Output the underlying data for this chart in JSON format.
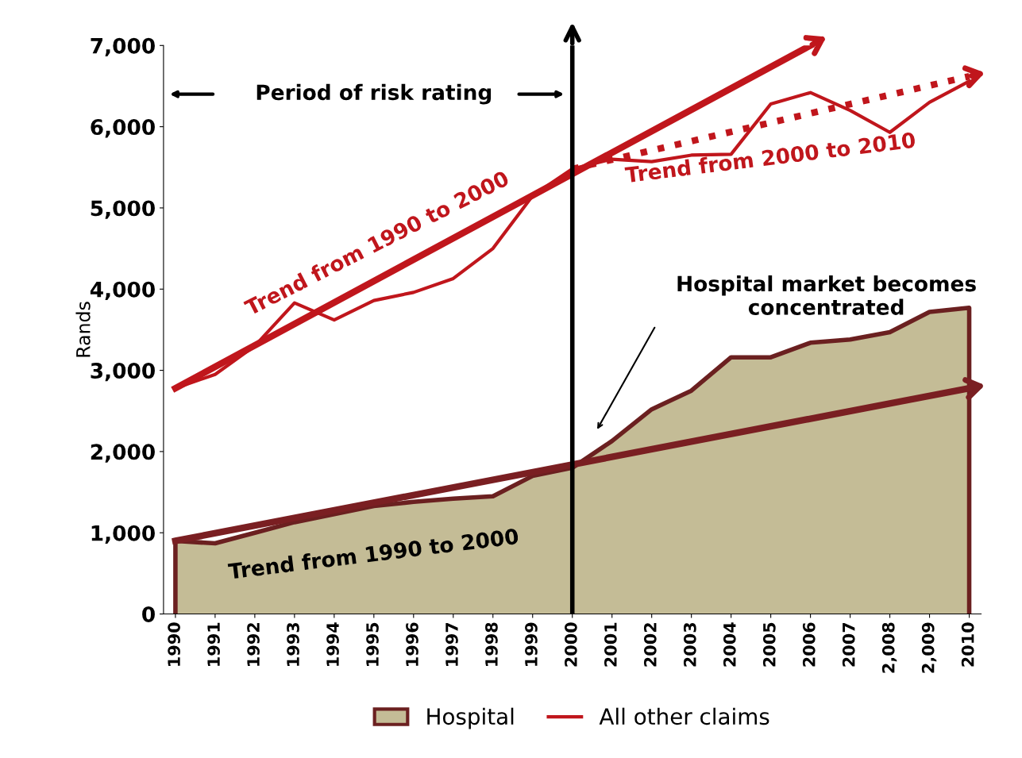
{
  "chart_data": {
    "type": "line",
    "ylabel": "Rands",
    "x": [
      1990,
      1991,
      1992,
      1993,
      1994,
      1995,
      1996,
      1997,
      1998,
      1999,
      2000,
      2001,
      2002,
      2003,
      2004,
      2005,
      2006,
      2007,
      2008,
      2009,
      2010
    ],
    "xlim": [
      1989.7,
      2010.3
    ],
    "xticks": [
      1990,
      1991,
      1992,
      1993,
      1994,
      1995,
      1996,
      1997,
      1998,
      1999,
      2000,
      2001,
      2002,
      2003,
      2004,
      2005,
      2006,
      2007,
      {
        "value": 2008,
        "label": "2,008"
      },
      {
        "value": 2009,
        "label": "2,009"
      },
      2010
    ],
    "ylim": [
      0,
      7000
    ],
    "yticks": [
      0,
      {
        "value": 1000,
        "label": "1,000"
      },
      {
        "value": 2000,
        "label": "2,000"
      },
      {
        "value": 3000,
        "label": "3,000"
      },
      {
        "value": 4000,
        "label": "4,000"
      },
      {
        "value": 5000,
        "label": "5,000"
      },
      {
        "value": 6000,
        "label": "6,000"
      },
      {
        "value": 7000,
        "label": "7,000"
      }
    ],
    "series": [
      {
        "name": "Hospital",
        "type": "area",
        "color": "#c4bc96",
        "values": [
          900,
          870,
          1000,
          1130,
          1230,
          1330,
          1380,
          1420,
          1450,
          1700,
          1800,
          2130,
          2520,
          2750,
          3160,
          3160,
          3340,
          3380,
          3470,
          3720,
          3770
        ]
      },
      {
        "name": "All other claims",
        "color": "#c0161c",
        "values": [
          2780,
          2950,
          3300,
          3830,
          3620,
          3860,
          3960,
          4130,
          4500,
          5150,
          5480,
          5600,
          5570,
          5650,
          5660,
          6280,
          6420,
          6200,
          5930,
          6300,
          6560
        ]
      },
      {
        "color": "#c0161c",
        "line_style": "solid",
        "x": [
          1990,
          2006
        ],
        "values": [
          2780,
          7000
        ]
      },
      {
        "color": "#c0161c",
        "line_style": "dotted",
        "x": [
          2000,
          2010
        ],
        "values": [
          5480,
          6620
        ]
      },
      {
        "color": "#7a1f22",
        "line_style": "solid",
        "x": [
          1990,
          2010
        ],
        "values": [
          900,
          2780
        ]
      }
    ],
    "ref_lines": [
      {
        "axis": "x",
        "value": 2000,
        "color": "#000000"
      }
    ],
    "annotations": [
      "Period of risk rating",
      "Trend from 1990 to 2000",
      "Trend from 2000 to 2010",
      "Hospital market becomes\nconcentrated",
      "Trend from 1990 to 2000"
    ],
    "legend": "bottom",
    "grid": false
  }
}
